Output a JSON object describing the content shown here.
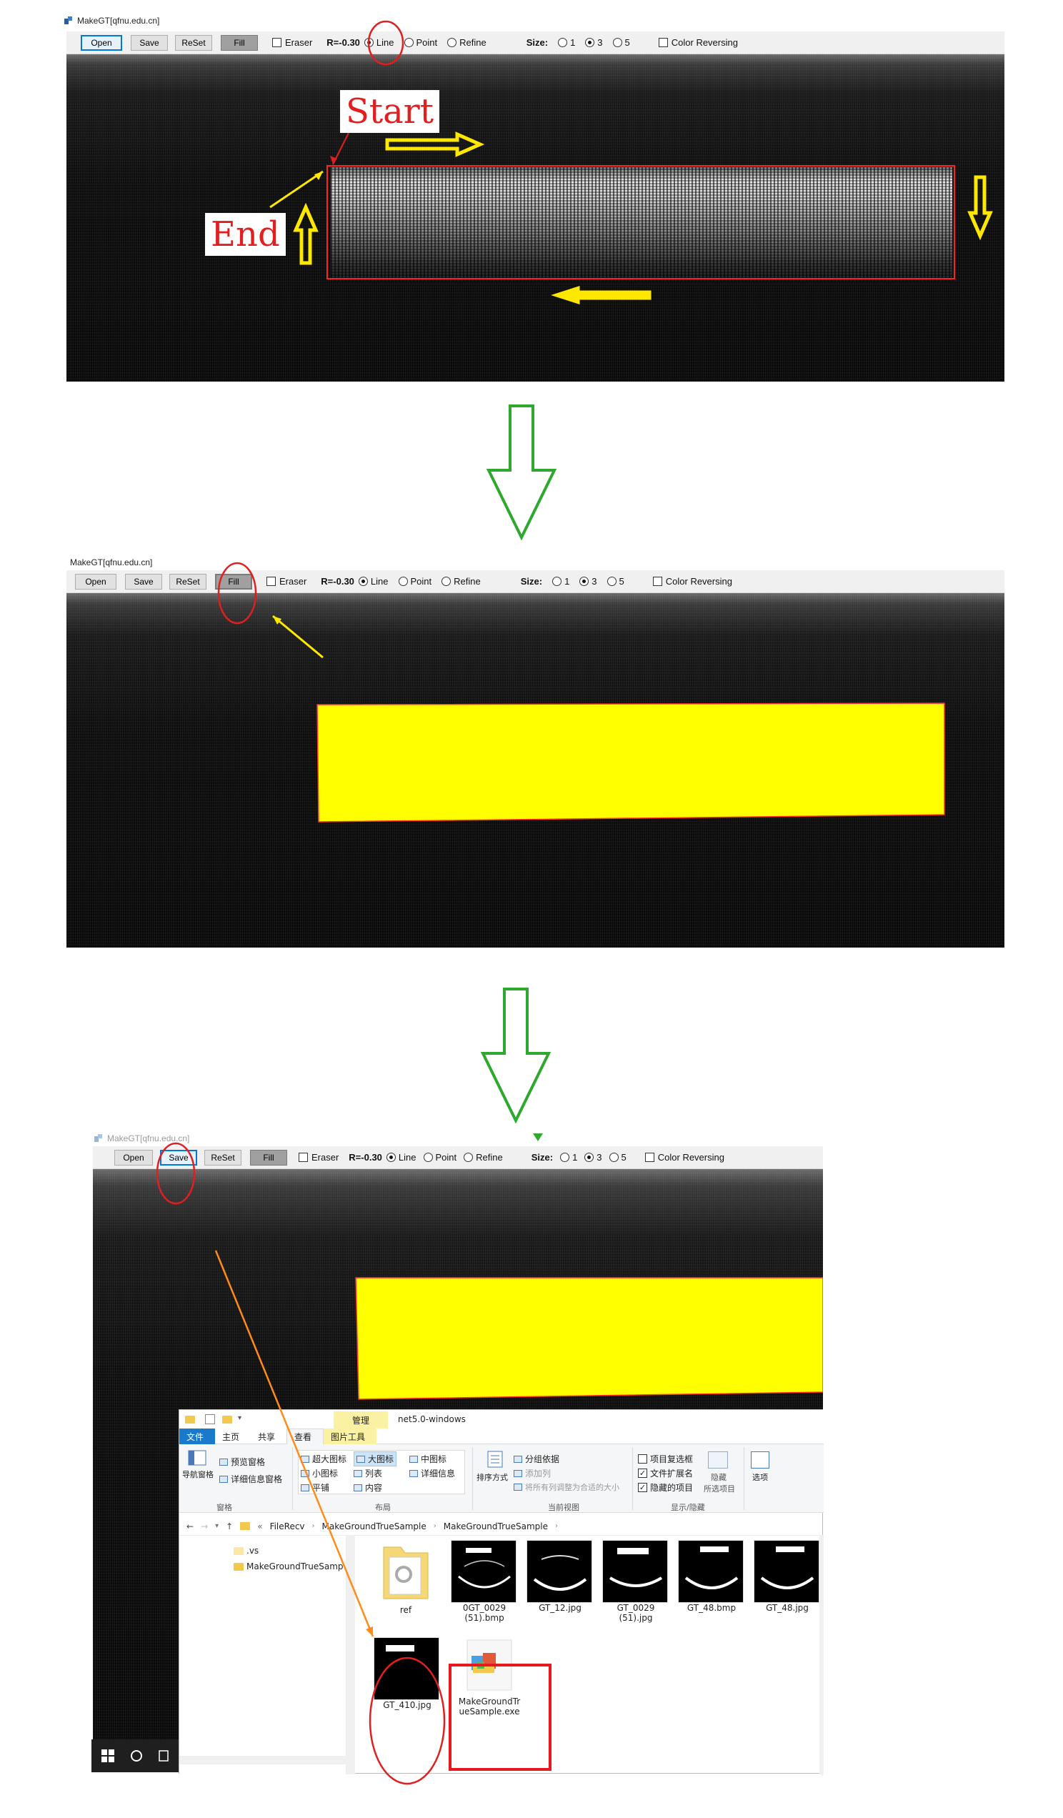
{
  "app": {
    "title": "MakeGT[qfnu.edu.cn]",
    "title_partial": "MakeGT[qfnu.edu.cn]"
  },
  "toolbar": {
    "open_label": "Open",
    "save_label": "Save",
    "reset_label": "ReSet",
    "fill_label": "Fill",
    "eraser_label": "Eraser",
    "r_label": "R=",
    "r_value": "-0.30",
    "line_label": "Line",
    "point_label": "Point",
    "refine_label": "Refine",
    "size_label": "Size:",
    "size_options": [
      "1",
      "3",
      "5"
    ],
    "size_selected": "3",
    "color_reversing_label": "Color Reversing"
  },
  "annotations": {
    "start_label": "Start",
    "end_label": "End"
  },
  "explorer": {
    "quick_access_icons": [
      "folder-icon",
      "properties-icon",
      "folder-icon"
    ],
    "manage_tab": "管理",
    "window_title": "net5.0-windows",
    "tabs": [
      "文件",
      "主页",
      "共享",
      "查看",
      "图片工具"
    ],
    "panes_group": {
      "nav_pane": "导航窗格",
      "preview_pane": "预览窗格",
      "details_pane": "详细信息窗格",
      "group_label": "窗格"
    },
    "layout_group": {
      "items": [
        "超大图标",
        "大图标",
        "中图标",
        "小图标",
        "列表",
        "详细信息",
        "平铺",
        "内容"
      ],
      "selected": "大图标",
      "group_label": "布局"
    },
    "current_view_group": {
      "sort": "排序方式",
      "group_by": "分组依据",
      "add_column": "添加列",
      "fit_columns": "将所有列调整为合适的大小",
      "group_label": "当前视图"
    },
    "show_hide_group": {
      "item_checkboxes": "项目复选框",
      "file_extensions": "文件扩展名",
      "hidden_items": "隐藏的项目",
      "hide_selected": "隐藏",
      "selected_items": "所选项目",
      "group_label": "显示/隐藏"
    },
    "options_label": "选项",
    "breadcrumb": [
      "«",
      "FileRecv",
      "MakeGroundTrueSample",
      "MakeGroundTrueSample"
    ],
    "sidebar_items": [
      ".vs",
      "MakeGroundTrueSamp"
    ],
    "files": [
      {
        "name": "ref",
        "kind": "folder"
      },
      {
        "name": "0GT_0029\n(51).bmp",
        "kind": "gt"
      },
      {
        "name": "GT_12.jpg",
        "kind": "gt"
      },
      {
        "name": "GT_0029\n(51).jpg",
        "kind": "gt"
      },
      {
        "name": "GT_48.bmp",
        "kind": "gt"
      },
      {
        "name": "GT_48.jpg",
        "kind": "gt"
      },
      {
        "name": "GT_410.jpg",
        "kind": "gt_blank"
      },
      {
        "name": "MakeGroundTr\nueSample.exe",
        "kind": "exe"
      }
    ]
  },
  "colors": {
    "fill_yellow": "#ffff00",
    "annotation_red": "#e02020",
    "arrow_yellow": "#ffe800",
    "flow_green": "#2ea82e",
    "orange_line": "#ff8c1a",
    "highlight_red": "#e8191e"
  }
}
